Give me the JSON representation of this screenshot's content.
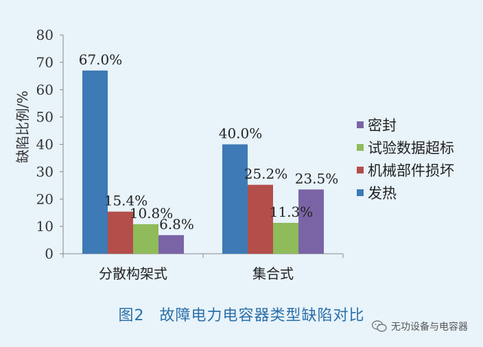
{
  "chart_data": {
    "type": "bar",
    "categories": [
      "分散构架式",
      "集合式"
    ],
    "series": [
      {
        "name": "发热",
        "color": "#3e7ab5",
        "values": [
          67.0,
          40.0
        ],
        "labels": [
          "67.0%",
          "40.0%"
        ]
      },
      {
        "name": "机械部件损坏",
        "color": "#b34e4a",
        "values": [
          15.4,
          25.2
        ],
        "labels": [
          "15.4%",
          "25.2%"
        ]
      },
      {
        "name": "试验数据超标",
        "color": "#8fbb5a",
        "values": [
          10.8,
          11.3
        ],
        "labels": [
          "10.8%",
          "11.3%"
        ]
      },
      {
        "name": "密封",
        "color": "#7a64a6",
        "values": [
          6.8,
          23.5
        ],
        "labels": [
          "6.8%",
          "23.5%"
        ]
      }
    ],
    "legend_order": [
      "密封",
      "试验数据超标",
      "机械部件损坏",
      "发热"
    ],
    "ylabel": "缺陷比例/%",
    "ylim": [
      0,
      80
    ],
    "yticks": [
      0,
      10,
      20,
      30,
      40,
      50,
      60,
      70,
      80
    ],
    "grid": false,
    "legend_position": "right"
  },
  "caption": {
    "figure_number": "图2",
    "title": "故障电力电容器类型缺陷对比"
  },
  "watermark": {
    "text": "无功设备与电容器",
    "icon": "wechat-icon"
  }
}
